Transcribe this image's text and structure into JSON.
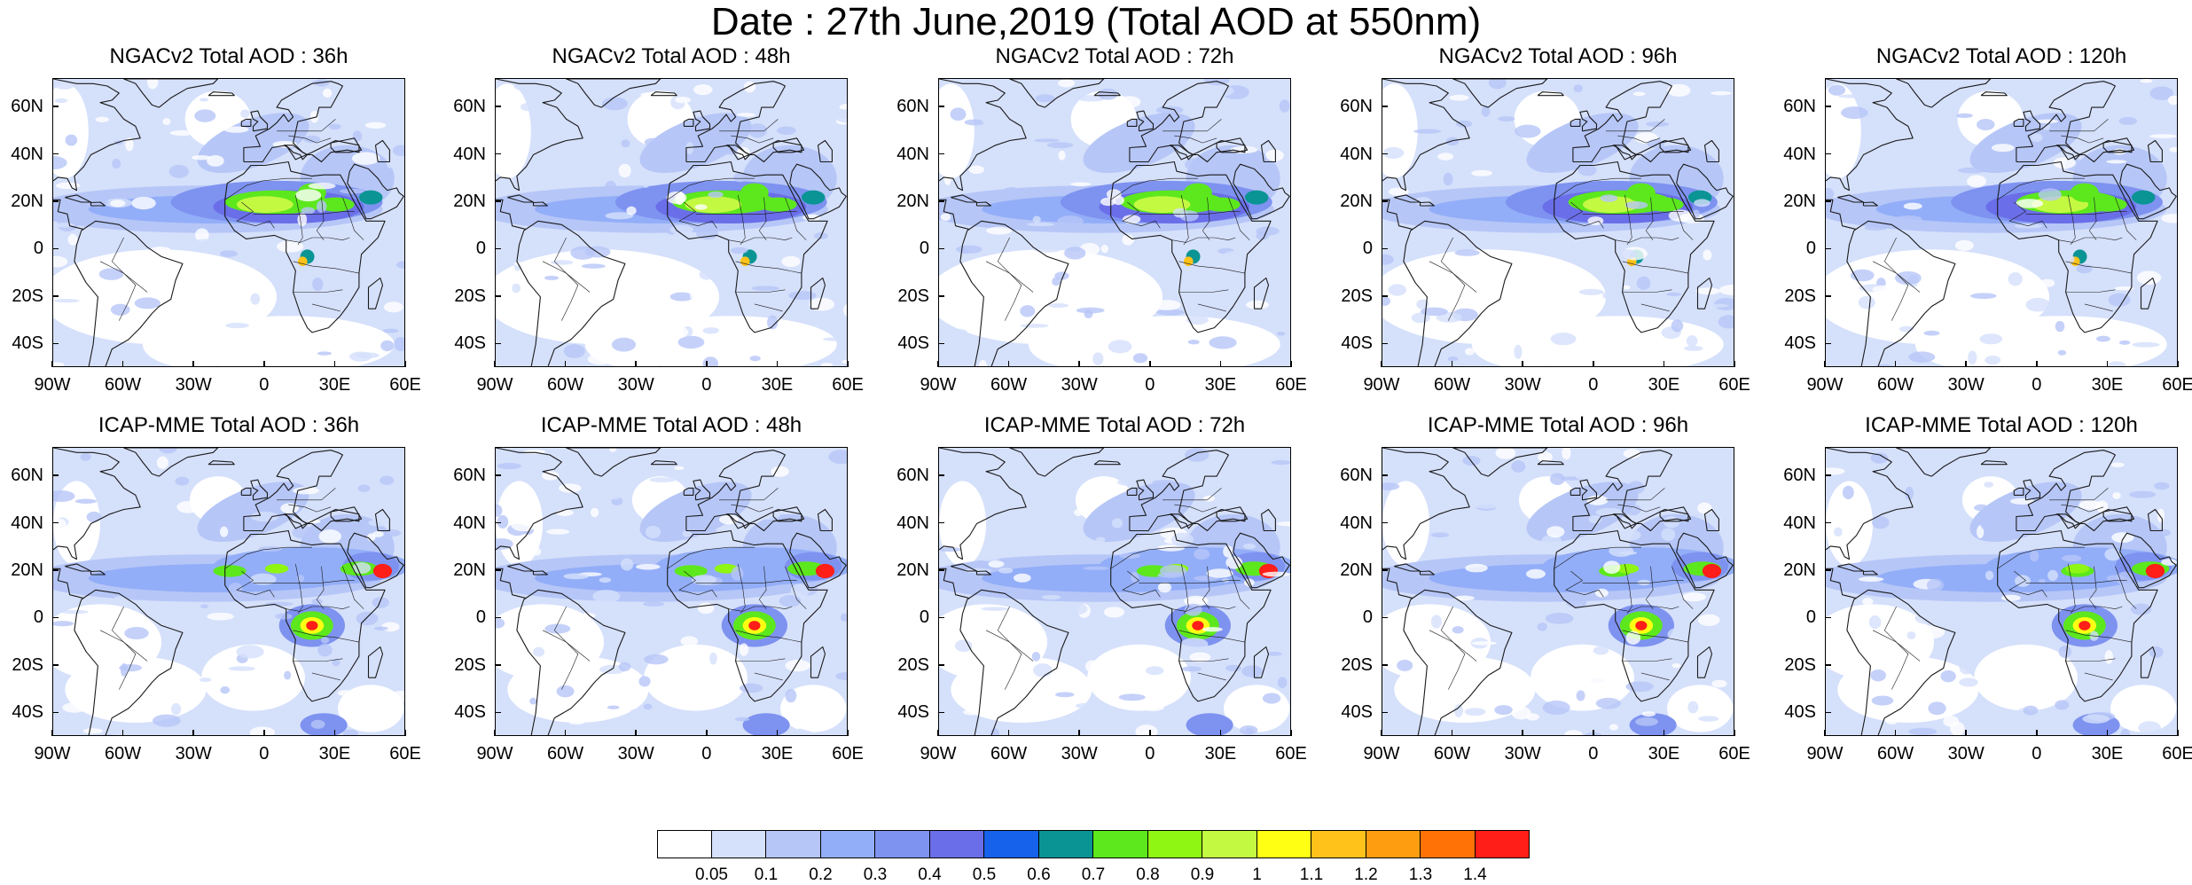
{
  "title": "Date : 27th June,2019 (Total AOD at 550nm)",
  "panels": [
    {
      "title": "NGACv2 Total AOD : 36h"
    },
    {
      "title": "NGACv2 Total AOD : 48h"
    },
    {
      "title": "NGACv2 Total AOD : 72h"
    },
    {
      "title": "NGACv2 Total AOD : 96h"
    },
    {
      "title": "NGACv2 Total AOD : 120h"
    },
    {
      "title": "ICAP-MME Total AOD : 36h"
    },
    {
      "title": "ICAP-MME Total AOD : 48h"
    },
    {
      "title": "ICAP-MME Total AOD : 72h"
    },
    {
      "title": "ICAP-MME Total AOD : 96h"
    },
    {
      "title": "ICAP-MME Total AOD : 120h"
    }
  ],
  "lat_labels": [
    "60N",
    "40N",
    "20N",
    "0",
    "20S",
    "40S"
  ],
  "lat_values": [
    60,
    40,
    20,
    0,
    -20,
    -40
  ],
  "lon_labels": [
    "90W",
    "60W",
    "30W",
    "0",
    "30E",
    "60E"
  ],
  "lon_values": [
    -90,
    -60,
    -30,
    0,
    30,
    60
  ],
  "extent": {
    "lon_min": -90,
    "lon_max": 60,
    "lat_min": -50,
    "lat_max": 72
  },
  "colorbar": {
    "colors": [
      "#ffffff",
      "#d5e0fb",
      "#b6c6f7",
      "#93aef8",
      "#7e92f0",
      "#6a6ee8",
      "#1662ea",
      "#0a9494",
      "#5ce81c",
      "#8ff512",
      "#c4f942",
      "#ffff14",
      "#ffc21a",
      "#ff9d10",
      "#ff7306",
      "#ff1e18"
    ],
    "labels": [
      "0.05",
      "0.1",
      "0.2",
      "0.3",
      "0.4",
      "0.5",
      "0.6",
      "0.7",
      "0.8",
      "0.9",
      "1",
      "1.1",
      "1.2",
      "1.3",
      "1.4"
    ]
  }
}
